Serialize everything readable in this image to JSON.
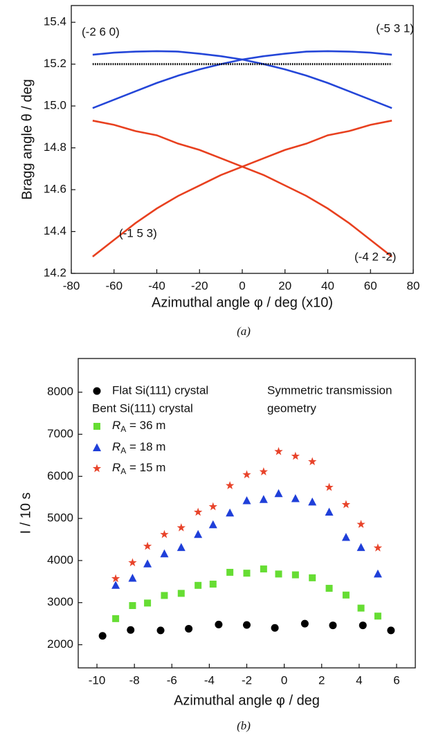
{
  "chart_data": [
    {
      "type": "line",
      "caption": "(a)",
      "x_label": "Azimuthal angle φ / deg (x10)",
      "y_label": "Bragg angle θ / deg",
      "x": [
        -70,
        -60,
        -50,
        -40,
        -30,
        -20,
        -10,
        0,
        10,
        20,
        30,
        40,
        50,
        60,
        70
      ],
      "series": [
        {
          "name": "(-2 6 0)",
          "color": "#2446d8",
          "values": [
            15.245,
            15.255,
            15.26,
            15.262,
            15.26,
            15.25,
            15.238,
            15.222,
            15.2,
            15.175,
            15.145,
            15.11,
            15.07,
            15.03,
            14.99
          ]
        },
        {
          "name": "(-5 3 1)",
          "color": "#2446d8",
          "values": [
            14.99,
            15.03,
            15.07,
            15.11,
            15.145,
            15.175,
            15.2,
            15.222,
            15.238,
            15.25,
            15.26,
            15.262,
            15.26,
            15.255,
            15.245
          ]
        },
        {
          "name": "(-1 5 3)",
          "color": "#e8401f",
          "values": [
            14.28,
            14.36,
            14.44,
            14.51,
            14.57,
            14.62,
            14.67,
            14.71,
            14.75,
            14.79,
            14.82,
            14.86,
            14.88,
            14.91,
            14.93
          ]
        },
        {
          "name": "(-4 2 -2)",
          "color": "#e8401f",
          "values": [
            14.93,
            14.91,
            14.88,
            14.86,
            14.82,
            14.79,
            14.75,
            14.71,
            14.67,
            14.62,
            14.57,
            14.51,
            14.44,
            14.36,
            14.28
          ]
        },
        {
          "color": "#000000",
          "dotted": true,
          "values": [
            15.2,
            15.2,
            15.2,
            15.2,
            15.2,
            15.2,
            15.2,
            15.2,
            15.2,
            15.2,
            15.2,
            15.2,
            15.2,
            15.2,
            15.2
          ]
        }
      ],
      "xlim": [
        -80,
        80
      ],
      "xticks": [
        -80,
        -60,
        -40,
        -20,
        0,
        20,
        40,
        60,
        80
      ],
      "ylim": [
        14.2,
        15.48
      ],
      "yticks": [
        14.2,
        14.4,
        14.6,
        14.8,
        {
          "value": 15,
          "label": "15.0"
        },
        15.2,
        15.4
      ]
    },
    {
      "type": "scatter",
      "caption": "(b)",
      "x_label": "Azimuthal angle φ / deg",
      "y_label": "I / 10 s",
      "legend_heading": "Bent Si(111) crystal",
      "annotation": [
        "Symmetric transmission",
        "geometry"
      ],
      "series": [
        {
          "name": "Flat Si(111) crystal",
          "color": "#000000",
          "marker": "circle",
          "x": [
            -9.7,
            -8.2,
            -6.6,
            -5.1,
            -3.5,
            -2.0,
            -0.5,
            1.1,
            2.6,
            4.2,
            5.7
          ],
          "values": [
            2210,
            2350,
            2340,
            2380,
            2480,
            2470,
            2400,
            2500,
            2460,
            2460,
            2340
          ]
        },
        {
          "name": "RA = 36 m",
          "color": "#66dd33",
          "marker": "square",
          "x": [
            -9.0,
            -8.1,
            -7.3,
            -6.4,
            -5.5,
            -4.6,
            -3.8,
            -2.9,
            -2.0,
            -1.1,
            -0.3,
            0.6,
            1.5,
            2.4,
            3.3,
            4.1,
            5.0
          ],
          "values": [
            2620,
            2930,
            2990,
            3170,
            3220,
            3410,
            3440,
            3720,
            3700,
            3800,
            3680,
            3660,
            3590,
            3340,
            3180,
            2870,
            2680
          ]
        },
        {
          "name": "RA = 18 m",
          "color": "#1f3fd9",
          "marker": "triangle",
          "x": [
            -9.0,
            -8.1,
            -7.3,
            -6.4,
            -5.5,
            -4.6,
            -3.8,
            -2.9,
            -2.0,
            -1.1,
            -0.3,
            0.6,
            1.5,
            2.4,
            3.3,
            4.1,
            5.0
          ],
          "values": [
            3410,
            3580,
            3920,
            4160,
            4310,
            4620,
            4850,
            5130,
            5420,
            5450,
            5590,
            5470,
            5390,
            5150,
            4550,
            4310,
            3680
          ]
        },
        {
          "name": "RA = 15 m",
          "color": "#e8432a",
          "marker": "star",
          "x": [
            -9.0,
            -8.1,
            -7.3,
            -6.4,
            -5.5,
            -4.6,
            -3.8,
            -2.9,
            -2.0,
            -1.1,
            -0.3,
            0.6,
            1.5,
            2.4,
            3.3,
            4.1,
            5.0
          ],
          "values": [
            3570,
            3950,
            4340,
            4620,
            4780,
            5150,
            5280,
            5780,
            6040,
            6110,
            6590,
            6480,
            6350,
            5740,
            5330,
            4860,
            4300
          ]
        }
      ],
      "xlim": [
        -11,
        7
      ],
      "xticks": [
        -10,
        -8,
        -6,
        -4,
        -2,
        0,
        2,
        4,
        6
      ],
      "ylim": [
        1450,
        8800
      ],
      "yticks": [
        2000,
        3000,
        4000,
        5000,
        6000,
        7000,
        8000
      ]
    }
  ]
}
